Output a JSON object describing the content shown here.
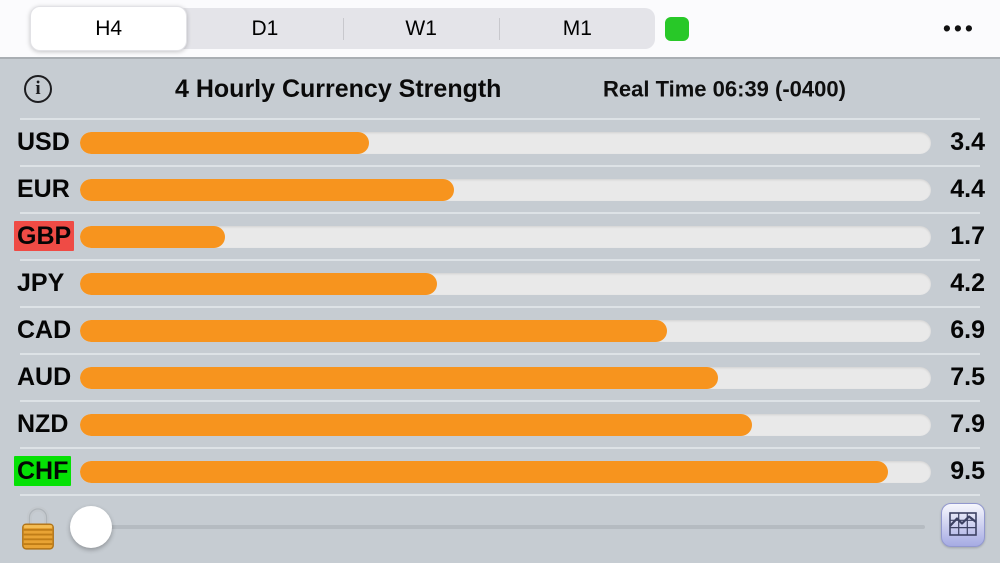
{
  "topbar": {
    "tabs": [
      {
        "label": "H4",
        "selected": true
      },
      {
        "label": "D1",
        "selected": false
      },
      {
        "label": "W1",
        "selected": false
      },
      {
        "label": "M1",
        "selected": false
      }
    ],
    "status_color": "#28c828",
    "menu_label": "•••"
  },
  "header": {
    "info_symbol": "i",
    "title": "4 Hourly Currency Strength",
    "realtime": "Real Time 06:39 (-0400)"
  },
  "chart_data": {
    "type": "bar",
    "orientation": "horizontal",
    "title": "4 Hourly Currency Strength",
    "categories": [
      "USD",
      "EUR",
      "GBP",
      "JPY",
      "CAD",
      "AUD",
      "NZD",
      "CHF"
    ],
    "values": [
      3.4,
      4.4,
      1.7,
      4.2,
      6.9,
      7.5,
      7.9,
      9.5
    ],
    "xlim": [
      0,
      10
    ],
    "bar_color": "#f7941e",
    "track_color": "#e9e9e9",
    "label_highlights": {
      "GBP": "#ef4b45",
      "CHF": "#05e105"
    }
  }
}
